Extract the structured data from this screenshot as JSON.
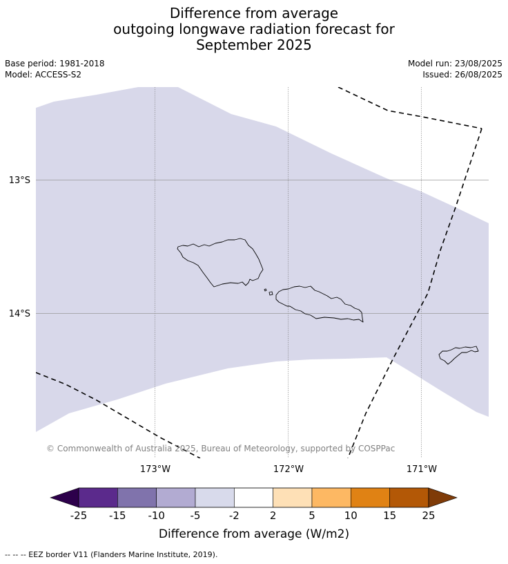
{
  "title": {
    "line1": "Difference from average",
    "line2": "outgoing longwave radiation forecast for",
    "line3": "September 2025"
  },
  "meta": {
    "base_period": "Base period: 1981-2018",
    "model": "Model: ACCESS-S2",
    "model_run": "Model run: 23/08/2025",
    "issued": "Issued: 26/08/2025"
  },
  "map": {
    "lat_labels": [
      "13°S",
      "14°S"
    ],
    "lon_labels": [
      "173°W",
      "172°W",
      "171°W"
    ],
    "copyright": "© Commonwealth of Australia 2025, Bureau of Meteorology, supported by COSPPac",
    "anomaly_band_fill": "#d8d8ea",
    "anomaly_band_category": "-5 to -2",
    "islands": [
      "Savai'i",
      "Upolu",
      "Tutuila"
    ]
  },
  "colorbar": {
    "ticks": [
      "-25",
      "-15",
      "-10",
      "-5",
      "-2",
      "2",
      "5",
      "10",
      "15",
      "25"
    ],
    "colors": {
      "under": "#2d004b",
      "bins": [
        "#5b2a8c",
        "#8073ac",
        "#b2abd2",
        "#d8daeb",
        "#ffffff",
        "#fee0b6",
        "#fdb863",
        "#e08214",
        "#b35806"
      ],
      "over": "#7f3b08"
    },
    "label": "Difference from average (W/m2)"
  },
  "legend": {
    "eez_text": "--  --  -- EEZ border V11 (Flanders Marine Institute, 2019)."
  }
}
